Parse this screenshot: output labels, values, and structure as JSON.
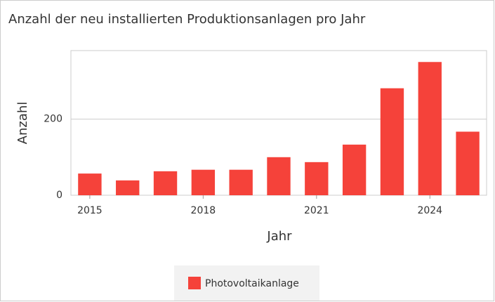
{
  "chart_data": {
    "type": "bar",
    "title": "Anzahl der neu installierten Produktionsanlagen pro Jahr",
    "x_label": "Jahr",
    "y_label": "Anzahl",
    "x": [
      2015,
      2016,
      2017,
      2018,
      2019,
      2020,
      2021,
      2022,
      2023,
      2024,
      2025
    ],
    "series": [
      {
        "name": "Photovoltaikanlage",
        "color": "#f5423a",
        "values": [
          57,
          39,
          63,
          67,
          67,
          100,
          87,
          133,
          281,
          350,
          167
        ]
      }
    ],
    "xlim": [
      2014.5,
      2025.5
    ],
    "xticks": [
      2015,
      2018,
      2021,
      2024
    ],
    "ylim": [
      0,
      380
    ],
    "yticks": [
      0,
      200
    ],
    "grid": true,
    "legend": "bottom"
  }
}
